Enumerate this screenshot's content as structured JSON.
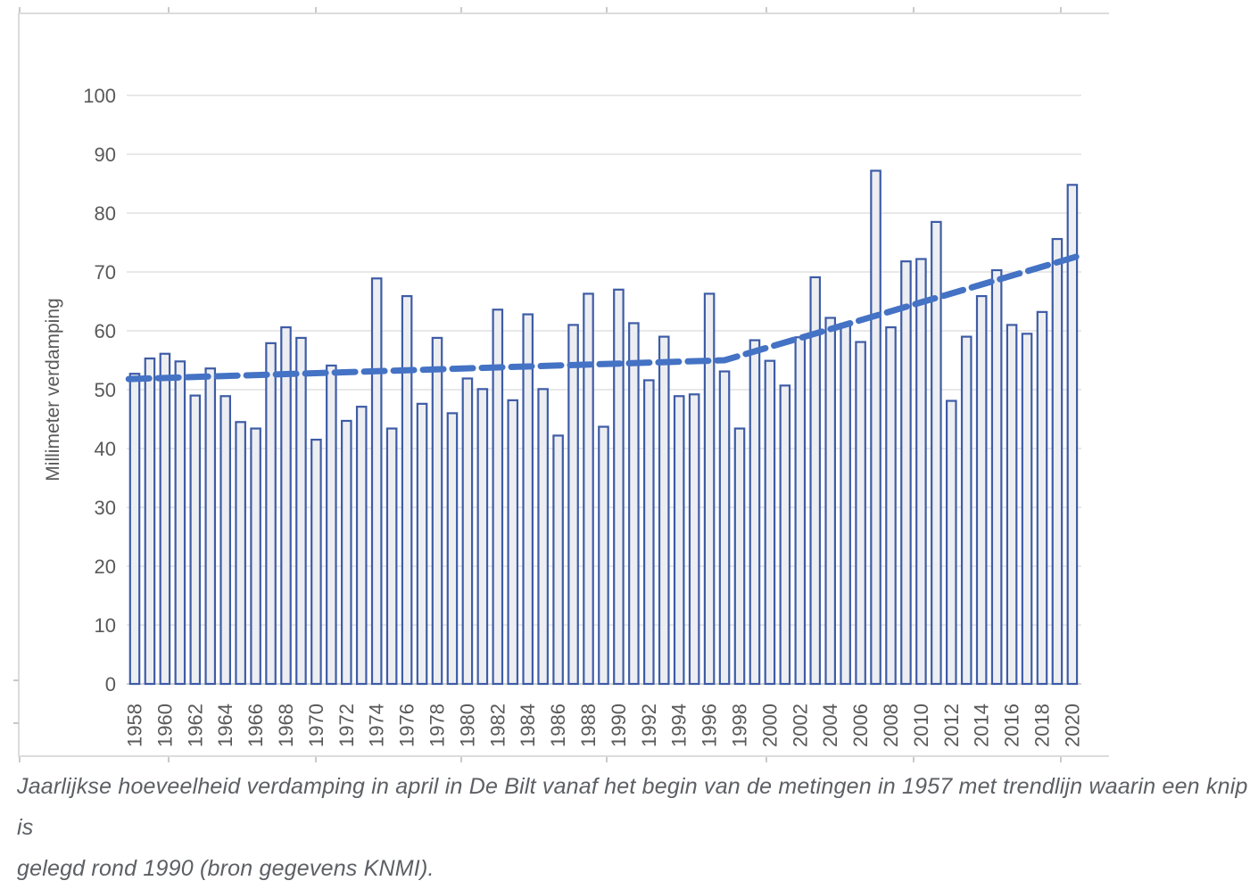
{
  "caption": {
    "line1": "Jaarlijkse hoeveelheid verdamping in april in De Bilt vanaf het begin van de metingen in 1957 met trendlijn waarin een knip is",
    "line2": "gelegd rond 1990 (bron gegevens KNMI)."
  },
  "chart_data": {
    "type": "bar",
    "title": "",
    "xlabel": "",
    "ylabel": "Millimeter verdamping",
    "ylim": [
      0,
      100
    ],
    "yticks": [
      0,
      10,
      20,
      30,
      40,
      50,
      60,
      70,
      80,
      90,
      100
    ],
    "grid": true,
    "legend": false,
    "categories": [
      1958,
      1959,
      1960,
      1961,
      1962,
      1963,
      1964,
      1965,
      1966,
      1967,
      1968,
      1969,
      1970,
      1971,
      1972,
      1973,
      1974,
      1975,
      1976,
      1977,
      1978,
      1979,
      1980,
      1981,
      1982,
      1983,
      1984,
      1985,
      1986,
      1987,
      1988,
      1989,
      1990,
      1991,
      1992,
      1993,
      1994,
      1995,
      1996,
      1997,
      1998,
      1999,
      2000,
      2001,
      2002,
      2003,
      2004,
      2005,
      2006,
      2007,
      2008,
      2009,
      2010,
      2011,
      2012,
      2013,
      2014,
      2015,
      2016,
      2017,
      2018,
      2019,
      2020
    ],
    "values": [
      52.7,
      55.3,
      56.1,
      54.8,
      49.0,
      53.6,
      48.9,
      44.5,
      43.4,
      57.9,
      60.6,
      58.8,
      41.5,
      54.1,
      44.7,
      47.1,
      68.9,
      43.4,
      65.9,
      47.6,
      58.8,
      46.0,
      51.9,
      50.1,
      63.6,
      48.2,
      62.8,
      50.1,
      42.2,
      61.0,
      66.3,
      43.7,
      67.0,
      61.3,
      51.6,
      59.0,
      48.9,
      49.2,
      66.3,
      53.1,
      43.4,
      58.4,
      54.9,
      50.7,
      58.9,
      69.1,
      62.2,
      61.2,
      58.1,
      87.2,
      60.6,
      71.8,
      72.2,
      78.5,
      48.1,
      59.0,
      65.9,
      70.3,
      61.0,
      59.5,
      63.2,
      75.6,
      84.8
    ],
    "xtick_labels": [
      "1958",
      "1960",
      "1962",
      "1964",
      "1966",
      "1968",
      "1970",
      "1972",
      "1974",
      "1976",
      "1978",
      "1980",
      "1982",
      "1984",
      "1986",
      "1988",
      "1990",
      "1992",
      "1994",
      "1996",
      "1998",
      "2000",
      "2002",
      "2004",
      "2006",
      "2008",
      "2010",
      "2012",
      "2014",
      "2016",
      "2018",
      "2020"
    ],
    "trendline": {
      "style": "dashed",
      "points": [
        {
          "year": 1957.6,
          "value": 51.8
        },
        {
          "year": 1997.0,
          "value": 55.0
        },
        {
          "year": 2020.4,
          "value": 72.7
        }
      ]
    },
    "colors": {
      "bar_border": "#3e5ca6",
      "bar_fill": "#edeef2",
      "trendline": "#4472c4",
      "gridline": "#d9d9d9",
      "axis_line": "#c2c2c2",
      "axis_text": "#595959",
      "caption_text": "#5c5f64"
    }
  }
}
